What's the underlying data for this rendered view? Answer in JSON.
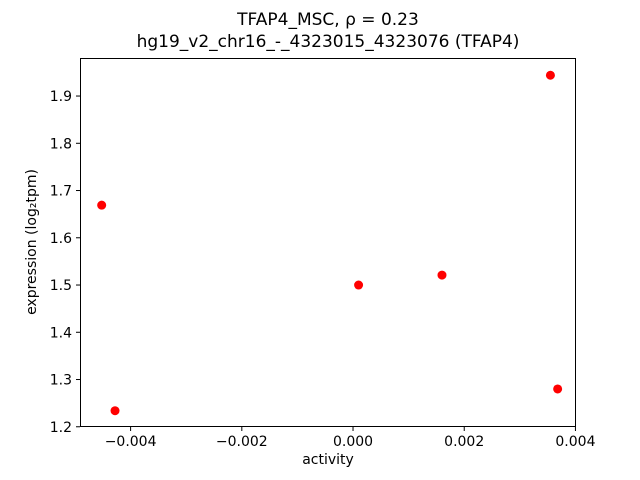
{
  "chart_data": {
    "type": "scatter",
    "title": "TFAP4_MSC, ρ = 0.23",
    "subtitle": "hg19_v2_chr16_-_4323015_4323076 (TFAP4)",
    "xlabel": "activity",
    "ylabel": "expression (log₂tpm)",
    "marker_color": "#ff0000",
    "frame_color": "#000000",
    "grid": false,
    "legend": null,
    "xlim": [
      -0.00491,
      0.00401
    ],
    "ylim": [
      1.1995,
      1.9805
    ],
    "x_tick_values": [
      -0.004,
      -0.002,
      0.0,
      0.002,
      0.004
    ],
    "x_tick_labels": [
      "−0.004",
      "−0.002",
      "0.000",
      "0.002",
      "0.004"
    ],
    "y_tick_values": [
      1.2,
      1.3,
      1.4,
      1.5,
      1.6,
      1.7,
      1.8,
      1.9
    ],
    "y_tick_labels": [
      "1.2",
      "1.3",
      "1.4",
      "1.5",
      "1.6",
      "1.7",
      "1.8",
      "1.9"
    ],
    "points": [
      {
        "x": -0.00452,
        "y": 1.669
      },
      {
        "x": -0.00428,
        "y": 1.234
      },
      {
        "x": 0.0001,
        "y": 1.5
      },
      {
        "x": 0.0016,
        "y": 1.521
      },
      {
        "x": 0.00355,
        "y": 1.944
      },
      {
        "x": 0.00368,
        "y": 1.28
      }
    ]
  }
}
